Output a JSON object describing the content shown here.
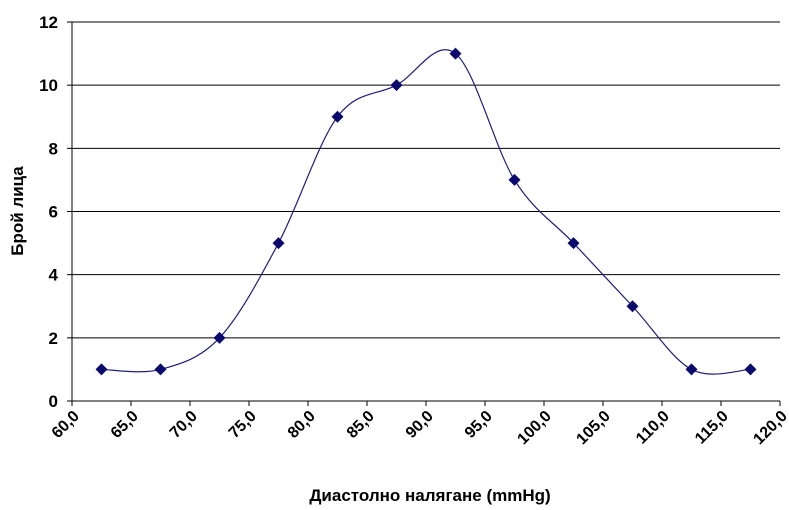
{
  "chart_data": {
    "type": "line",
    "smoothed": true,
    "title": "",
    "xlabel": "Диастолно налягане (mmHg)",
    "ylabel": "Брой лица",
    "x_tick_labels": [
      "60,0",
      "65,0",
      "70,0",
      "75,0",
      "80,0",
      "85,0",
      "90,0",
      "95,0",
      "100,0",
      "105,0",
      "110,0",
      "115,0",
      "120,0"
    ],
    "y_tick_labels": [
      "0",
      "2",
      "4",
      "6",
      "8",
      "10",
      "12"
    ],
    "xlim": [
      60,
      120
    ],
    "ylim": [
      0,
      12
    ],
    "y_major_step": 2,
    "grid": "horizontal",
    "legend": "none",
    "series": [
      {
        "x": [
          62.5,
          67.5,
          72.5,
          77.5,
          82.5,
          87.5,
          92.5,
          97.5,
          102.5,
          107.5,
          112.5,
          117.5
        ],
        "values": [
          1,
          1,
          2,
          5,
          9,
          10,
          11,
          7,
          5,
          3,
          1,
          1
        ],
        "line_color": "#1f1f7a",
        "marker_color": "#0a0a6e",
        "marker": "diamond"
      }
    ]
  }
}
